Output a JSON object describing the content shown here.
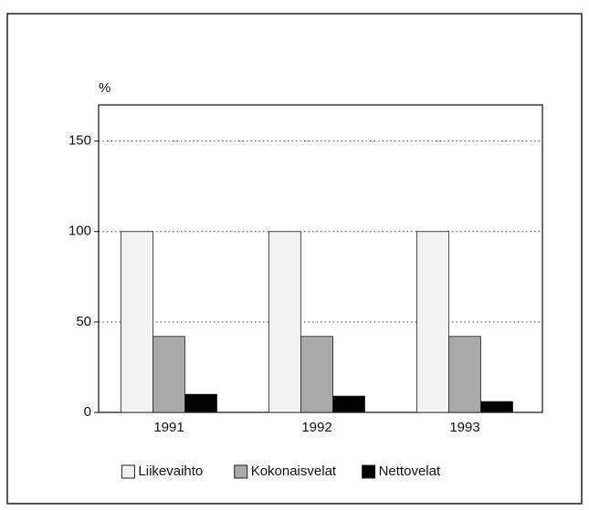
{
  "chart_data": {
    "type": "bar",
    "y_label": "%",
    "categories": [
      "1991",
      "1992",
      "1993"
    ],
    "series": [
      {
        "name": "Liikevaihto",
        "color": "#f2f2f2",
        "values": [
          100,
          100,
          100
        ]
      },
      {
        "name": "Kokonaisvelat",
        "color": "#a9a9a9",
        "values": [
          42,
          42,
          42
        ]
      },
      {
        "name": "Nettovelat",
        "color": "#000000",
        "values": [
          10,
          9,
          6
        ]
      }
    ],
    "ylim": [
      0,
      170
    ],
    "yticks": [
      0,
      50,
      100,
      150
    ],
    "grid": true,
    "legend": "bottom"
  }
}
